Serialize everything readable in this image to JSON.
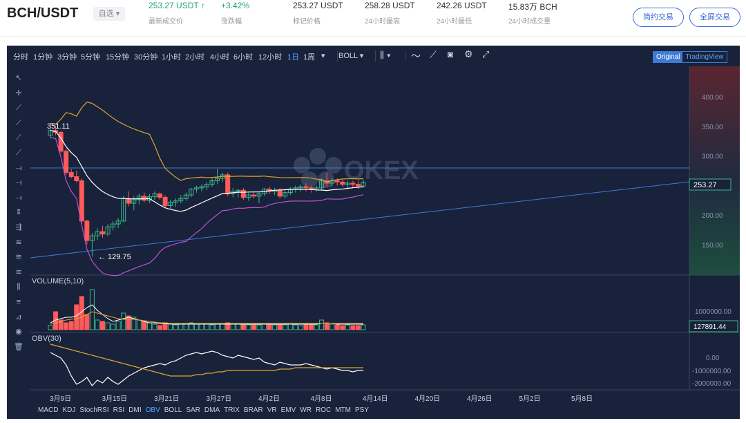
{
  "header": {
    "pair": "BCH/USDT",
    "favorite_label": "自选",
    "stats": [
      {
        "value": "253.27 USDT ↑",
        "label": "最新成交价",
        "color": "#1fa37a"
      },
      {
        "value": "+3.42%",
        "label": "涨跌幅",
        "color": "#1fa37a"
      },
      {
        "value": "253.27 USDT",
        "label": "标记价格",
        "color": "#333333"
      },
      {
        "value": "258.28 USDT",
        "label": "24小时最高",
        "color": "#333333"
      },
      {
        "value": "242.26 USDT",
        "label": "24小时最低",
        "color": "#333333"
      },
      {
        "value": "15.83万 BCH",
        "label": "24小时成交量",
        "color": "#333333"
      }
    ],
    "contract_button": "简约交易",
    "fullscreen_button": "全屏交易"
  },
  "toolbar": {
    "intervals": [
      "分时",
      "1分钟",
      "3分钟",
      "5分钟",
      "15分钟",
      "30分钟",
      "1小时",
      "2小时",
      "4小时",
      "6小时",
      "12小时",
      "1日",
      "1周"
    ],
    "active_interval": "1日",
    "indicator": "BOLL",
    "view_original": "Original",
    "view_tradingview": "TradingView"
  },
  "price_axis": {
    "ticks": [
      "400.00",
      "350.00",
      "300.00",
      "250.00",
      "200.00",
      "150.00"
    ]
  },
  "labels": {
    "last_price": "253.27",
    "high_annotation": "351.11",
    "low_annotation": "← 129.75",
    "volume_title": "VOLUME(5,10)",
    "volume_last": "127891.44",
    "volume_ticks": [
      "1000000.00",
      "500000.00"
    ],
    "obv_title": "OBV(30)",
    "obv_ticks": [
      "0.00",
      "-1000000.00",
      "-2000000.00"
    ],
    "watermark": "OKEX"
  },
  "date_axis": [
    "3月9日",
    "3月15日",
    "3月21日",
    "3月27日",
    "4月2日",
    "4月8日",
    "4月14日",
    "4月20日",
    "4月26日",
    "5月2日",
    "5月8日"
  ],
  "indicator_tabs": [
    "MACD",
    "KDJ",
    "StochRSI",
    "RSI",
    "DMI",
    "OBV",
    "BOLL",
    "SAR",
    "DMA",
    "TRIX",
    "BRAR",
    "VR",
    "EMV",
    "WR",
    "ROC",
    "MTM",
    "PSY"
  ],
  "active_indicator_tab": "OBV",
  "colors": {
    "up": "#3fb68b",
    "down": "#ff5b5b",
    "boll_upper": "#e0a52f",
    "boll_mid": "#ffffff",
    "boll_lower": "#c050d0",
    "trend": "#3e7ad8",
    "accent": "#3a6bd8"
  },
  "drawing_tools": [
    "cursor-icon",
    "crosshair-icon",
    "trend-line-icon",
    "ray-icon",
    "extended-line-icon",
    "segment-icon",
    "horizontal-line-icon",
    "horizontal-ray-icon",
    "parallel-channel-icon",
    "vertical-line-icon",
    "price-line-icon",
    "fibonacci-icon",
    "fib-channel-icon",
    "pitchfork-icon",
    "gann-icon",
    "text-icon",
    "measure-icon",
    "eye-icon",
    "trash-icon"
  ]
}
